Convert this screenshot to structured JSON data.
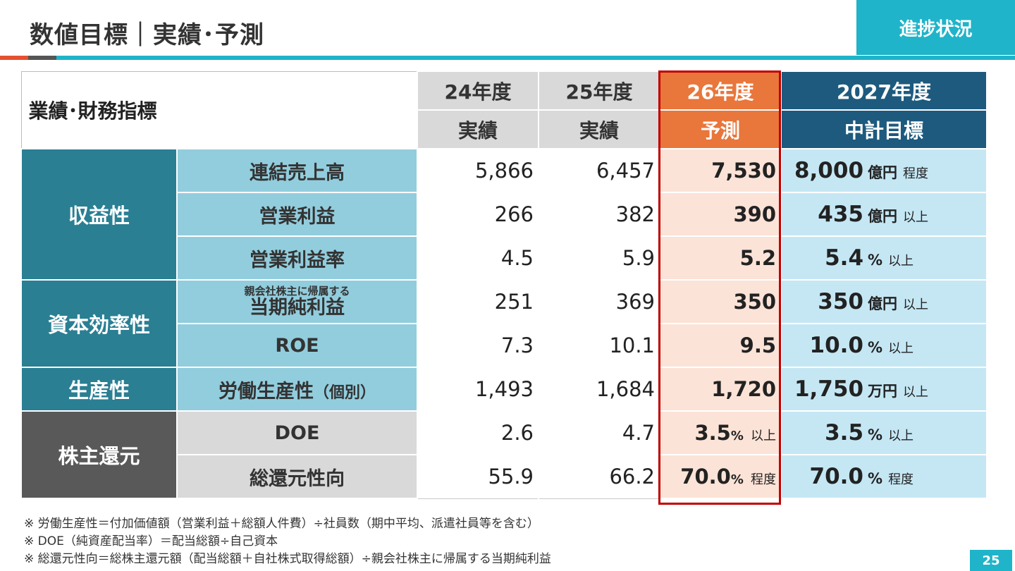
{
  "header": {
    "title": "数値目標｜実績･予測",
    "badge": "進捗状況"
  },
  "table": {
    "corner_label": "業績･財務指標",
    "columns": [
      {
        "year": "24年度",
        "type": "実績"
      },
      {
        "year": "25年度",
        "type": "実績"
      },
      {
        "year": "26年度",
        "type": "予測"
      },
      {
        "year": "2027年度",
        "type": "中計目標"
      }
    ],
    "categories": {
      "profitability": "収益性",
      "capital_efficiency": "資本効率性",
      "productivity": "生産性",
      "shareholder_return": "株主還元"
    },
    "rows": [
      {
        "metric": "連結売上高",
        "fy24": "5,866",
        "fy25": "6,457",
        "fy26": "7,530",
        "fy26_unit": "",
        "fy26_note": "",
        "target": "8,000",
        "target_unit": "億円",
        "target_note": "程度"
      },
      {
        "metric": "営業利益",
        "fy24": "266",
        "fy25": "382",
        "fy26": "390",
        "fy26_unit": "",
        "fy26_note": "",
        "target": "435",
        "target_unit": "億円",
        "target_note": "以上"
      },
      {
        "metric": "営業利益率",
        "fy24": "4.5",
        "fy25": "5.9",
        "fy26": "5.2",
        "fy26_unit": "",
        "fy26_note": "",
        "target": "5.4",
        "target_unit": "%",
        "target_note": "以上"
      },
      {
        "metric_small": "親会社株主に帰属する",
        "metric": "当期純利益",
        "fy24": "251",
        "fy25": "369",
        "fy26": "350",
        "fy26_unit": "",
        "fy26_note": "",
        "target": "350",
        "target_unit": "億円",
        "target_note": "以上"
      },
      {
        "metric": "ROE",
        "fy24": "7.3",
        "fy25": "10.1",
        "fy26": "9.5",
        "fy26_unit": "",
        "fy26_note": "",
        "target": "10.0",
        "target_unit": "%",
        "target_note": "以上"
      },
      {
        "metric": "労働生産性",
        "metric_paren": "（個別）",
        "fy24": "1,493",
        "fy25": "1,684",
        "fy26": "1,720",
        "fy26_unit": "",
        "fy26_note": "",
        "target": "1,750",
        "target_unit": "万円",
        "target_note": "以上"
      },
      {
        "metric": "DOE",
        "fy24": "2.6",
        "fy25": "4.7",
        "fy26": "3.5",
        "fy26_unit": "%",
        "fy26_note": "以上",
        "target": "3.5",
        "target_unit": "%",
        "target_note": "以上"
      },
      {
        "metric": "総還元性向",
        "fy24": "55.9",
        "fy25": "66.2",
        "fy26": "70.0",
        "fy26_unit": "%",
        "fy26_note": "程度",
        "target": "70.0",
        "target_unit": "%",
        "target_note": "程度"
      }
    ]
  },
  "notes": [
    "※ 労働生産性＝付加価値額（営業利益＋総額人件費）÷社員数（期中平均、派遣社員等を含む）",
    "※ DOE（純資産配当率）＝配当総額÷自己資本",
    "※ 総還元性向＝総株主還元額（配当総額＋自社株式取得総額）÷親会社株主に帰属する当期純利益"
  ],
  "page_number": "25",
  "colors": {
    "accent": "#1fb4c9",
    "category_teal": "#2a7f93",
    "category_gray": "#595959",
    "forecast_header": "#e9763b",
    "forecast_cell": "#fce3d7",
    "target_header": "#1d5a7e",
    "target_cell": "#c5e7f4",
    "highlight_border": "#c00000"
  }
}
